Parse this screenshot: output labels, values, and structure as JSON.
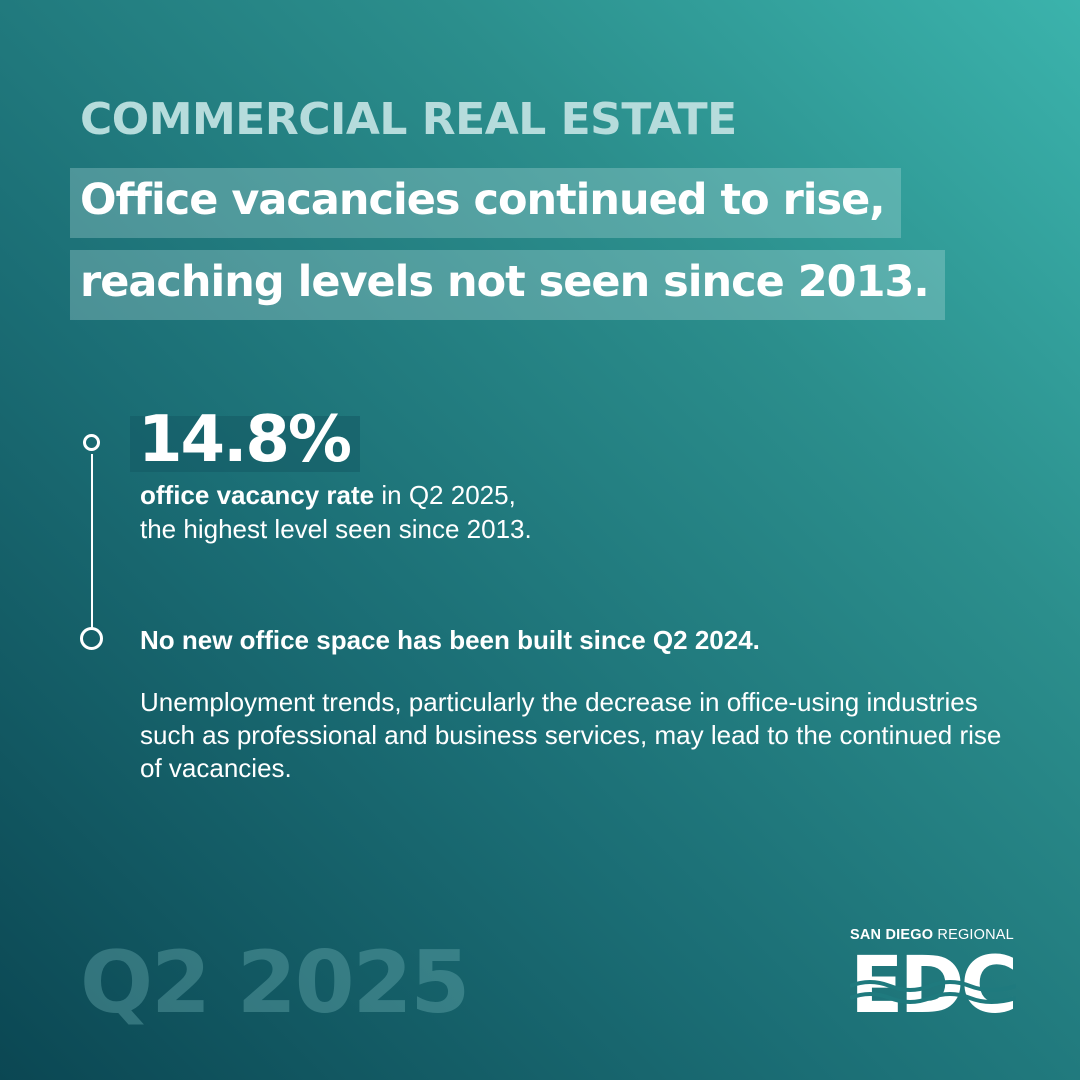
{
  "section_label": "COMMERCIAL REAL ESTATE",
  "headline": {
    "line1": "Office vacancies continued to rise,",
    "line2": "reaching levels not seen since 2013."
  },
  "stat": {
    "value": "14.8%",
    "desc_bold": "office vacancy rate",
    "desc_rest": " in Q2 2025,",
    "desc_line2": "the highest level seen since 2013."
  },
  "point2": "No new office space has been built since Q2 2024.",
  "paragraph": "Unemployment trends, particularly the decrease in office-using industries such as professional and business services, may lead to the continued rise of vacancies.",
  "period": "Q2 2025",
  "logo": {
    "top_bold": "SAN DIEGO",
    "top_light": " REGIONAL",
    "main": "EDC"
  },
  "colors": {
    "background_start": "#3bb3ac",
    "background_end": "#0b4753",
    "label": "#b6dcdc",
    "text": "#ffffff"
  }
}
